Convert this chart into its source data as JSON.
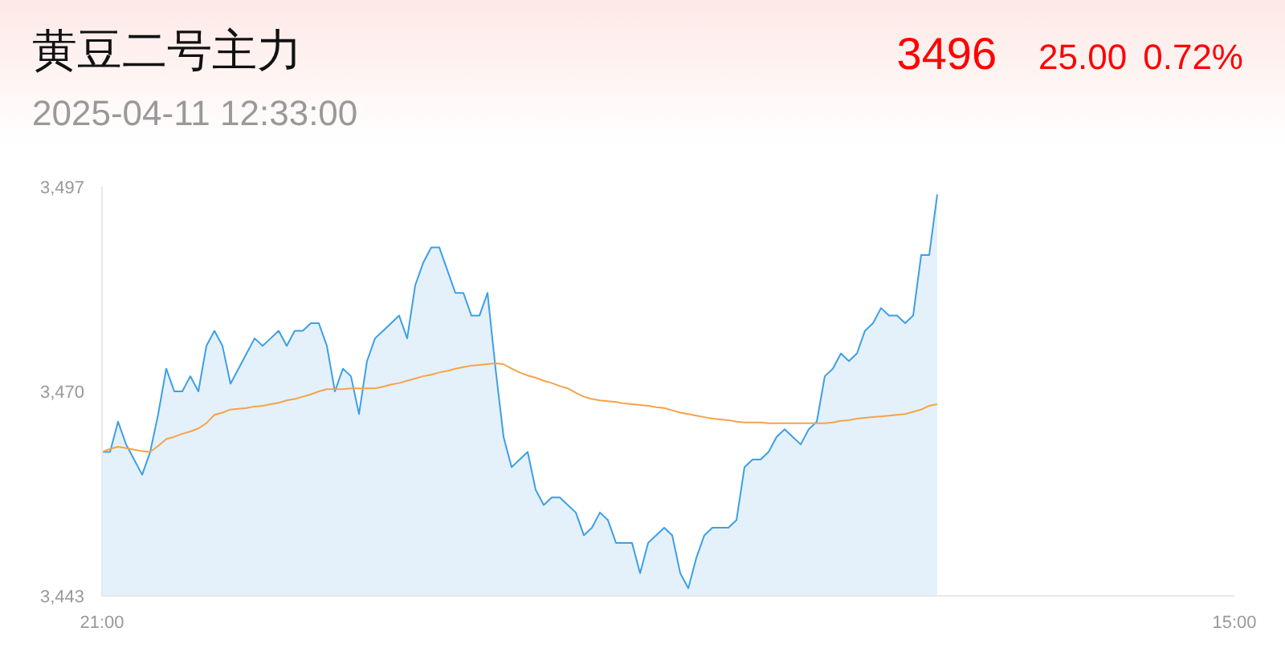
{
  "chart_data": {
    "type": "area",
    "title": "黄豆二号主力",
    "subtitle": "2025-04-11 12:33:00",
    "annotations": [
      "3496",
      "25.00",
      "0.72%"
    ],
    "categories": [
      "21:00",
      null,
      null,
      null,
      null,
      null,
      null,
      null,
      null,
      null,
      null,
      null,
      null,
      null,
      null,
      null,
      null,
      null,
      null,
      null,
      null,
      null,
      null,
      null,
      null,
      null,
      null,
      null,
      null,
      null,
      null,
      null,
      null,
      null,
      null,
      null,
      null,
      null,
      null,
      null,
      null,
      null,
      null,
      null,
      null,
      null,
      null,
      null,
      null,
      null,
      null,
      null,
      null,
      null,
      null,
      null,
      null,
      null,
      null,
      null,
      null,
      null,
      null,
      null,
      null,
      null,
      null,
      null,
      null,
      null,
      null,
      null,
      null,
      null,
      null,
      null,
      null,
      null,
      null,
      null,
      null,
      null,
      null,
      null,
      null,
      null,
      null,
      null,
      null,
      null,
      null,
      null,
      null,
      null,
      null,
      null,
      null,
      null,
      null,
      null,
      null,
      null,
      null,
      null,
      null,
      null,
      null,
      null,
      null,
      null,
      null,
      null,
      null,
      null,
      null,
      null,
      null,
      null,
      null,
      null,
      null,
      null,
      null,
      null,
      null,
      null,
      null,
      null,
      null,
      null,
      null,
      null,
      null,
      null,
      null,
      null,
      null,
      null,
      null,
      null,
      null,
      "15:00"
    ],
    "series": [
      {
        "color": "#3d9fe6",
        "values": [
          3462,
          3462,
          3466,
          3463,
          3461,
          3459,
          3462,
          3467,
          3473,
          3470,
          3470,
          3472,
          3470,
          3476,
          3478,
          3476,
          3471,
          3473,
          3475,
          3477,
          3476,
          3477,
          3478,
          3476,
          3478,
          3478,
          3479,
          3479,
          3476,
          3470,
          3473,
          3472,
          3467,
          3474,
          3477,
          3478,
          3479,
          3480,
          3477,
          3484,
          3487,
          3489,
          3489,
          3486,
          3483,
          3483,
          3480,
          3480,
          3483,
          3473,
          3464,
          3460,
          3461,
          3462,
          3457,
          3455,
          3456,
          3456,
          3455,
          3454,
          3451,
          3452,
          3454,
          3453,
          3450,
          3450,
          3450,
          3446,
          3450,
          3451,
          3452,
          3451,
          3446,
          3444,
          3448,
          3451,
          3452,
          3452,
          3452,
          3453,
          3460,
          3461,
          3461,
          3462,
          3464,
          3465,
          3464,
          3463,
          3465,
          3466,
          3472,
          3473,
          3475,
          3474,
          3475,
          3478,
          3479,
          3481,
          3480,
          3480,
          3479,
          3480,
          3488,
          3488,
          3496,
          null,
          null,
          null,
          null,
          null,
          null,
          null,
          null,
          null,
          null,
          null,
          null,
          null,
          null,
          null,
          null,
          null,
          null,
          null,
          null,
          null,
          null,
          null,
          null,
          null,
          null,
          null,
          null,
          null,
          null,
          null,
          null,
          null,
          null,
          null,
          null,
          null
        ]
      },
      {
        "type": "line",
        "color": "#f7a247",
        "values": [
          3462.0,
          3462.4,
          3462.7,
          3462.5,
          3462.3,
          3462.1,
          3462.0,
          3462.8,
          3463.7,
          3464.0,
          3464.4,
          3464.7,
          3465.1,
          3465.8,
          3466.9,
          3467.2,
          3467.6,
          3467.7,
          3467.8,
          3468.0,
          3468.1,
          3468.3,
          3468.5,
          3468.8,
          3469.0,
          3469.3,
          3469.6,
          3470.0,
          3470.3,
          3470.3,
          3470.3,
          3470.4,
          3470.4,
          3470.4,
          3470.4,
          3470.6,
          3470.9,
          3471.1,
          3471.4,
          3471.7,
          3472.0,
          3472.2,
          3472.5,
          3472.7,
          3473.0,
          3473.2,
          3473.4,
          3473.5,
          3473.6,
          3473.7,
          3473.6,
          3473.0,
          3472.5,
          3472.1,
          3471.8,
          3471.4,
          3471.1,
          3470.7,
          3470.4,
          3469.8,
          3469.3,
          3469.0,
          3468.8,
          3468.7,
          3468.6,
          3468.4,
          3468.3,
          3468.2,
          3468.1,
          3467.9,
          3467.8,
          3467.5,
          3467.2,
          3467.0,
          3466.8,
          3466.6,
          3466.4,
          3466.3,
          3466.2,
          3466.0,
          3465.9,
          3465.9,
          3465.9,
          3465.8,
          3465.8,
          3465.8,
          3465.8,
          3465.8,
          3465.8,
          3465.8,
          3465.8,
          3465.9,
          3466.1,
          3466.2,
          3466.4,
          3466.5,
          3466.6,
          3466.7,
          3466.8,
          3466.9,
          3467.0,
          3467.3,
          3467.6,
          3468.1,
          3468.3,
          null,
          null,
          null,
          null,
          null,
          null,
          null,
          null,
          null,
          null,
          null,
          null,
          null,
          null,
          null,
          null,
          null,
          null,
          null,
          null,
          null,
          null,
          null,
          null,
          null,
          null,
          null,
          null,
          null,
          null,
          null,
          null,
          null,
          null,
          null,
          null,
          null
        ]
      }
    ],
    "ylim": [
      3443,
      3497
    ],
    "yticks": [
      {
        "value": 3443,
        "label": "3,443"
      },
      {
        "value": 3470,
        "label": "3,470"
      },
      {
        "value": 3497,
        "label": "3,497"
      }
    ],
    "grid": false,
    "marker": "none",
    "line_style": "solid"
  }
}
